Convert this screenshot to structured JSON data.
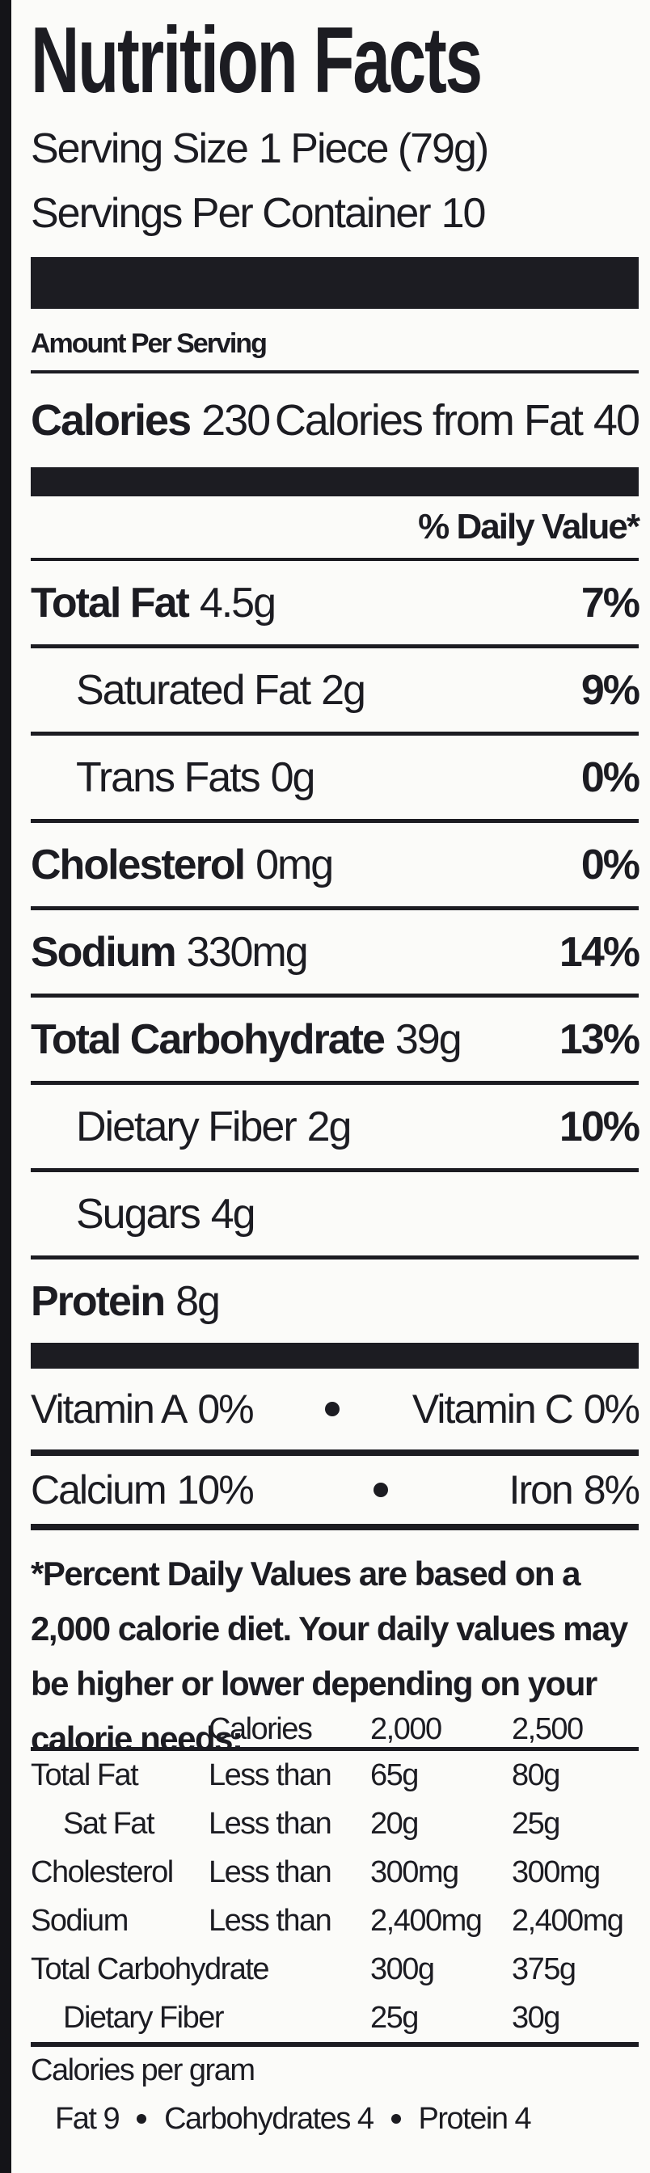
{
  "title": "Nutrition Facts",
  "serving_size": {
    "label": "Serving Size",
    "value": "1 Piece (79g)"
  },
  "servings_per_container": {
    "label": "Servings Per Container",
    "value": "10"
  },
  "amount_per_serving": "Amount Per Serving",
  "calories": {
    "label": "Calories",
    "value": "230",
    "from_fat_label": "Calories from Fat",
    "from_fat_value": "40"
  },
  "daily_value_header": "% Daily Value*",
  "nutrients": [
    {
      "name": "Total Fat",
      "amount": "4.5g",
      "dv": "7%",
      "sub": [
        {
          "name": "Saturated Fat",
          "amount": "2g",
          "dv": "9%"
        },
        {
          "name": "Trans Fats",
          "amount": "0g",
          "dv": "0%"
        }
      ]
    },
    {
      "name": "Cholesterol",
      "amount": "0mg",
      "dv": "0%"
    },
    {
      "name": "Sodium",
      "amount": "330mg",
      "dv": "14%"
    },
    {
      "name": "Total Carbohydrate",
      "amount": "39g",
      "dv": "13%",
      "sub": [
        {
          "name": "Dietary Fiber",
          "amount": "2g",
          "dv": "10%"
        },
        {
          "name": "Sugars",
          "amount": "4g"
        }
      ]
    },
    {
      "name": "Protein",
      "amount": "8g"
    }
  ],
  "vitamins": [
    [
      {
        "name": "Vitamin A",
        "value": "0%"
      },
      {
        "name": "Vitamin C",
        "value": "0%"
      }
    ],
    [
      {
        "name": "Calcium",
        "value": "10%"
      },
      {
        "name": "Iron",
        "value": "8%"
      }
    ]
  ],
  "footnote": "*Percent Daily Values are based on a 2,000 calorie diet. Your daily values may be higher or lower depending on your calorie needs:",
  "reference_table": {
    "header": {
      "label": "Calories",
      "columns": [
        "2,000",
        "2,500"
      ]
    },
    "rows": [
      {
        "name": "Total Fat",
        "qualifier": "Less than",
        "values": [
          "65g",
          "80g"
        ]
      },
      {
        "name": "Sat Fat",
        "qualifier": "Less than",
        "values": [
          "20g",
          "25g"
        ]
      },
      {
        "name": "Cholesterol",
        "qualifier": "Less than",
        "values": [
          "300mg",
          "300mg"
        ]
      },
      {
        "name": "Sodium",
        "qualifier": "Less than",
        "values": [
          "2,400mg",
          "2,400mg"
        ]
      },
      {
        "name": "Total Carbohydrate",
        "values": [
          "300g",
          "375g"
        ]
      },
      {
        "name": "Dietary Fiber",
        "values": [
          "25g",
          "30g"
        ]
      }
    ]
  },
  "calories_per_gram": {
    "label": "Calories per gram",
    "items": [
      "Fat 9",
      "Carbohydrates 4",
      "Protein 4"
    ]
  }
}
